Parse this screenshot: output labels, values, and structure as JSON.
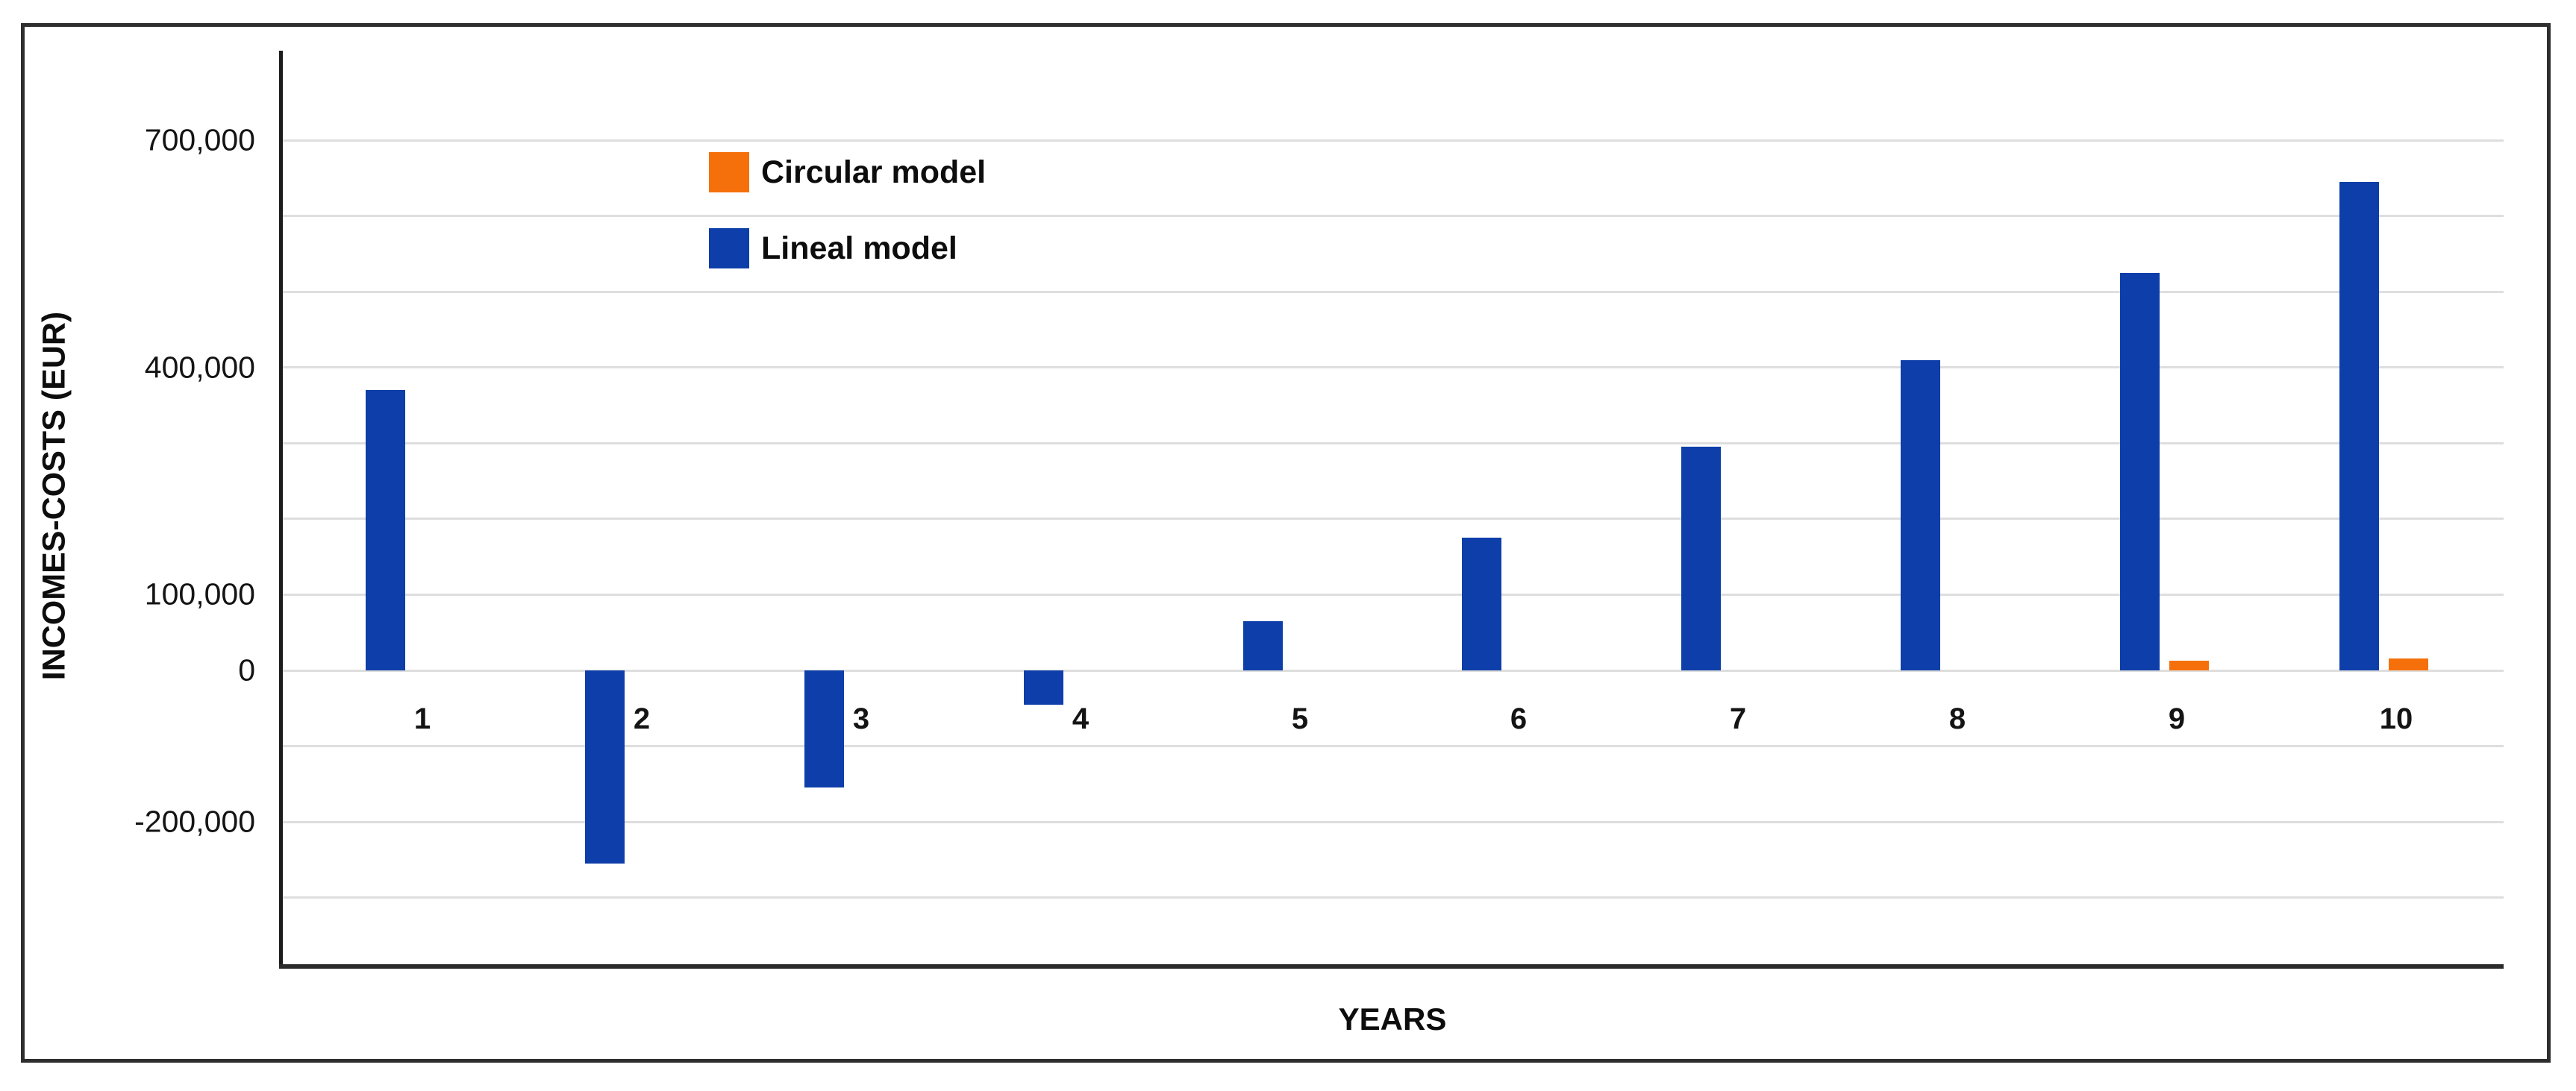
{
  "chart_data": {
    "type": "bar",
    "categories": [
      "1",
      "2",
      "3",
      "4",
      "5",
      "6",
      "7",
      "8",
      "9",
      "10"
    ],
    "series": [
      {
        "name": "Circular model",
        "color": "#f5700a",
        "values": [
          0,
          0,
          0,
          0,
          0,
          0,
          0,
          0,
          13000,
          16000
        ]
      },
      {
        "name": "Lineal model",
        "color": "#0d3ea9",
        "values": [
          370000,
          -255000,
          -155000,
          -45000,
          65000,
          175000,
          295000,
          410000,
          525000,
          645000
        ]
      }
    ],
    "title": "",
    "xlabel": "YEARS",
    "ylabel": "INCOMES-COSTS (EUR)",
    "ylim": [
      -390000,
      820000
    ],
    "grid": true,
    "grid_interval": 100000,
    "grid_min": -300000,
    "grid_max": 700000,
    "ytick_values": [
      700000,
      400000,
      100000,
      0,
      -200000
    ],
    "ytick_labels": [
      "700,000",
      "400,000",
      "100,000",
      "0",
      "-200,000"
    ],
    "legend_position": "inside-upper-left"
  },
  "colors": {
    "background": "#ffffff",
    "gridline": "#dedede",
    "axis_line": "#1c1c1c",
    "frame_border": "#2e2e2e",
    "text": "#141414"
  }
}
